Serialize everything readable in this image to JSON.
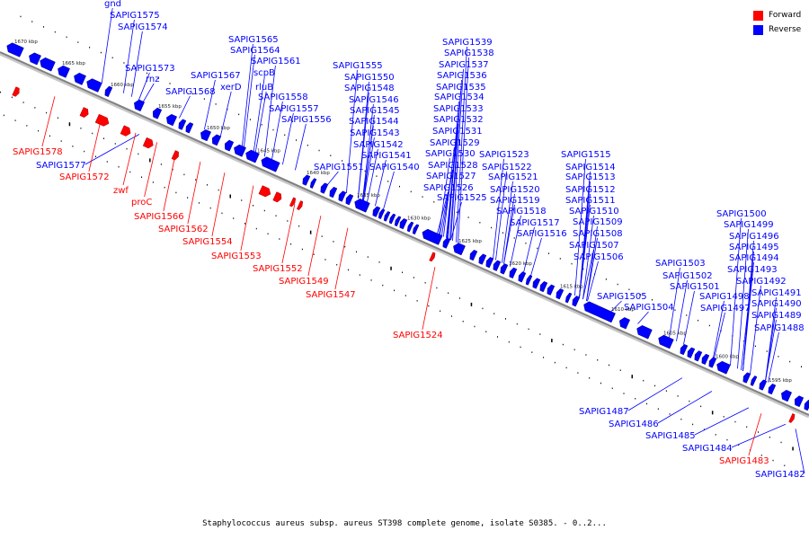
{
  "caption": "Staphylococcus aureus subsp. aureus ST398 complete genome, isolate S0385. - 0..2...",
  "legend": {
    "forward_label": "Forward",
    "reverse_label": "Reverse",
    "forward_color": "#ff0000",
    "reverse_color": "#0000ff"
  },
  "colors": {
    "forward": "#ff0000",
    "reverse": "#0000ff",
    "backbone": "#808080"
  },
  "position_ticks": [
    "1670 kbp",
    "1665 kbp",
    "1660 kbp",
    "1655 kbp",
    "1650 kbp",
    "1645 kbp",
    "1640 kbp",
    "1635 kbp",
    "1630 kbp",
    "1625 kbp",
    "1620 kbp",
    "1615 kbp",
    "1610 kbp",
    "1605 kbp",
    "1600 kbp",
    "1595 kbp"
  ],
  "reverse_genes": [
    "gnd",
    "SAPIG1575",
    "SAPIG1574",
    "SAPIG1573",
    "rnz",
    "SAPIG1568",
    "SAPIG1567",
    "SAPIG1565",
    "SAPIG1564",
    "SAPIG1561",
    "scpB",
    "xerD",
    "rluB",
    "SAPIG1558",
    "SAPIG1557",
    "SAPIG1556",
    "SAPIG1555",
    "SAPIG1550",
    "SAPIG1548",
    "SAPIG1546",
    "SAPIG1545",
    "SAPIG1544",
    "SAPIG1543",
    "SAPIG1542",
    "SAPIG1541",
    "SAPIG1551",
    "SAPIG1540",
    "SAPIG1539",
    "SAPIG1538",
    "SAPIG1537",
    "SAPIG1536",
    "SAPIG1535",
    "SAPIG1534",
    "SAPIG1533",
    "SAPIG1532",
    "SAPIG1531",
    "SAPIG1529",
    "SAPIG1530",
    "SAPIG1528",
    "SAPIG1527",
    "SAPIG1526",
    "SAPIG1525",
    "SAPIG1523",
    "SAPIG1522",
    "SAPIG1521",
    "SAPIG1520",
    "SAPIG1519",
    "SAPIG1518",
    "SAPIG1517",
    "SAPIG1516",
    "SAPIG1515",
    "SAPIG1514",
    "SAPIG1513",
    "SAPIG1512",
    "SAPIG1511",
    "SAPIG1510",
    "SAPIG1509",
    "SAPIG1508",
    "SAPIG1507",
    "SAPIG1506",
    "SAPIG1505",
    "SAPIG1504",
    "SAPIG1503",
    "SAPIG1502",
    "SAPIG1501",
    "SAPIG1500",
    "SAPIG1499",
    "SAPIG1496",
    "SAPIG1495",
    "SAPIG1494",
    "SAPIG1493",
    "SAPIG1492",
    "SAPIG1491",
    "SAPIG1490",
    "SAPIG1489",
    "SAPIG1488",
    "SAPIG1498",
    "SAPIG1497",
    "SAPIG1577",
    "SAPIG1487",
    "SAPIG1486",
    "SAPIG1485",
    "SAPIG1484",
    "SAPIG1482"
  ],
  "forward_genes": [
    "SAPIG1578",
    "SAPIG1572",
    "zwf",
    "proC",
    "SAPIG1566",
    "SAPIG1562",
    "SAPIG1554",
    "SAPIG1553",
    "SAPIG1552",
    "SAPIG1549",
    "SAPIG1547",
    "SAPIG1524",
    "SAPIG1483"
  ]
}
